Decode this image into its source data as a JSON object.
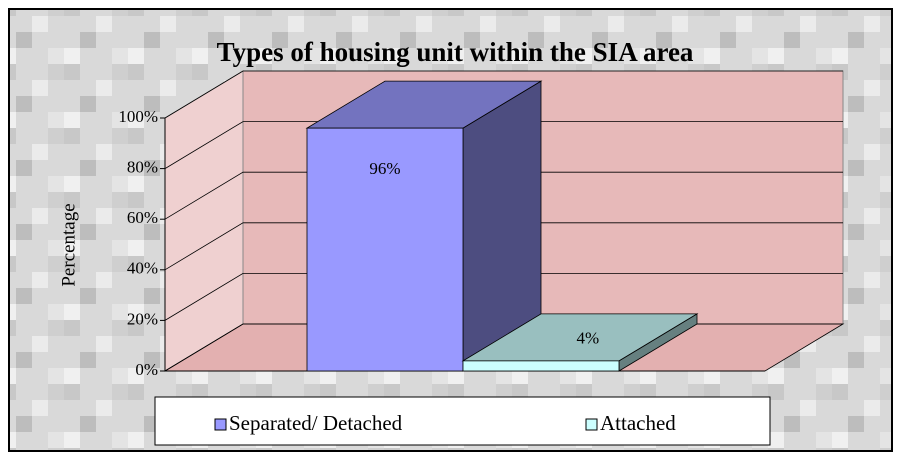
{
  "chart_data": {
    "type": "bar3d",
    "title": "Types of housing unit within the SIA area",
    "y_label": "Percentage",
    "categories": [
      null
    ],
    "series": [
      {
        "name": "Separated/ Detached",
        "color": "#9999ff",
        "values": [
          96
        ],
        "value_labels": [
          "96%"
        ]
      },
      {
        "name": "Attached",
        "color": "#ccffff",
        "values": [
          4
        ],
        "value_labels": [
          "4%"
        ]
      }
    ],
    "ylim": [
      0,
      100
    ],
    "yticks": [
      {
        "value": 0,
        "label": "0%"
      },
      {
        "value": 20,
        "label": "20%"
      },
      {
        "value": 40,
        "label": "40%"
      },
      {
        "value": 60,
        "label": "60%"
      },
      {
        "value": 80,
        "label": "80%"
      },
      {
        "value": 100,
        "label": "100%"
      }
    ],
    "grid": true,
    "legend": "bottom"
  }
}
